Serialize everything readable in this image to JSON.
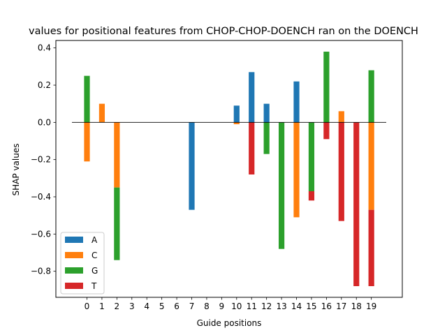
{
  "chart_data": {
    "type": "bar",
    "title": "values for positional features from CHOP-CHOP-DOENCH ran on the DOENCH",
    "xlabel": "Guide positions",
    "ylabel": "SHAP values",
    "ylim": [
      -0.94,
      0.44
    ],
    "yticks": [
      0.4,
      0.2,
      0.0,
      -0.2,
      -0.4,
      -0.6,
      -0.8
    ],
    "ytick_labels": [
      "0.4",
      "0.2",
      "0.0",
      "−0.2",
      "−0.4",
      "−0.6",
      "−0.8"
    ],
    "categories": [
      "0",
      "1",
      "2",
      "3",
      "4",
      "5",
      "6",
      "7",
      "8",
      "9",
      "10",
      "11",
      "12",
      "13",
      "14",
      "15",
      "16",
      "17",
      "18",
      "19"
    ],
    "legend_position": "lower-left",
    "stacked": true,
    "series": [
      {
        "name": "A",
        "color": "#1f77b4",
        "values": [
          0,
          0,
          0,
          0,
          0,
          0,
          0,
          -0.47,
          0,
          0,
          0.09,
          0.27,
          0.1,
          0,
          0.22,
          0,
          0,
          0,
          0,
          0
        ]
      },
      {
        "name": "C",
        "color": "#ff7f0e",
        "values": [
          -0.21,
          0.1,
          -0.35,
          0,
          0,
          0,
          0,
          0,
          0,
          0,
          -0.01,
          0,
          0,
          0,
          -0.51,
          0,
          0,
          0.06,
          0,
          -0.47
        ]
      },
      {
        "name": "G",
        "color": "#2ca02c",
        "values": [
          0.25,
          0,
          -0.39,
          0,
          0,
          0,
          0,
          0,
          0,
          0,
          0,
          0,
          -0.17,
          -0.68,
          0,
          -0.37,
          0.38,
          0,
          0,
          0.28
        ]
      },
      {
        "name": "T",
        "color": "#d62728",
        "values": [
          0,
          0,
          0,
          0,
          0,
          0,
          0,
          0,
          0,
          0,
          0,
          -0.28,
          0,
          0,
          0,
          -0.05,
          -0.09,
          -0.53,
          -0.88,
          -0.41
        ]
      }
    ]
  }
}
